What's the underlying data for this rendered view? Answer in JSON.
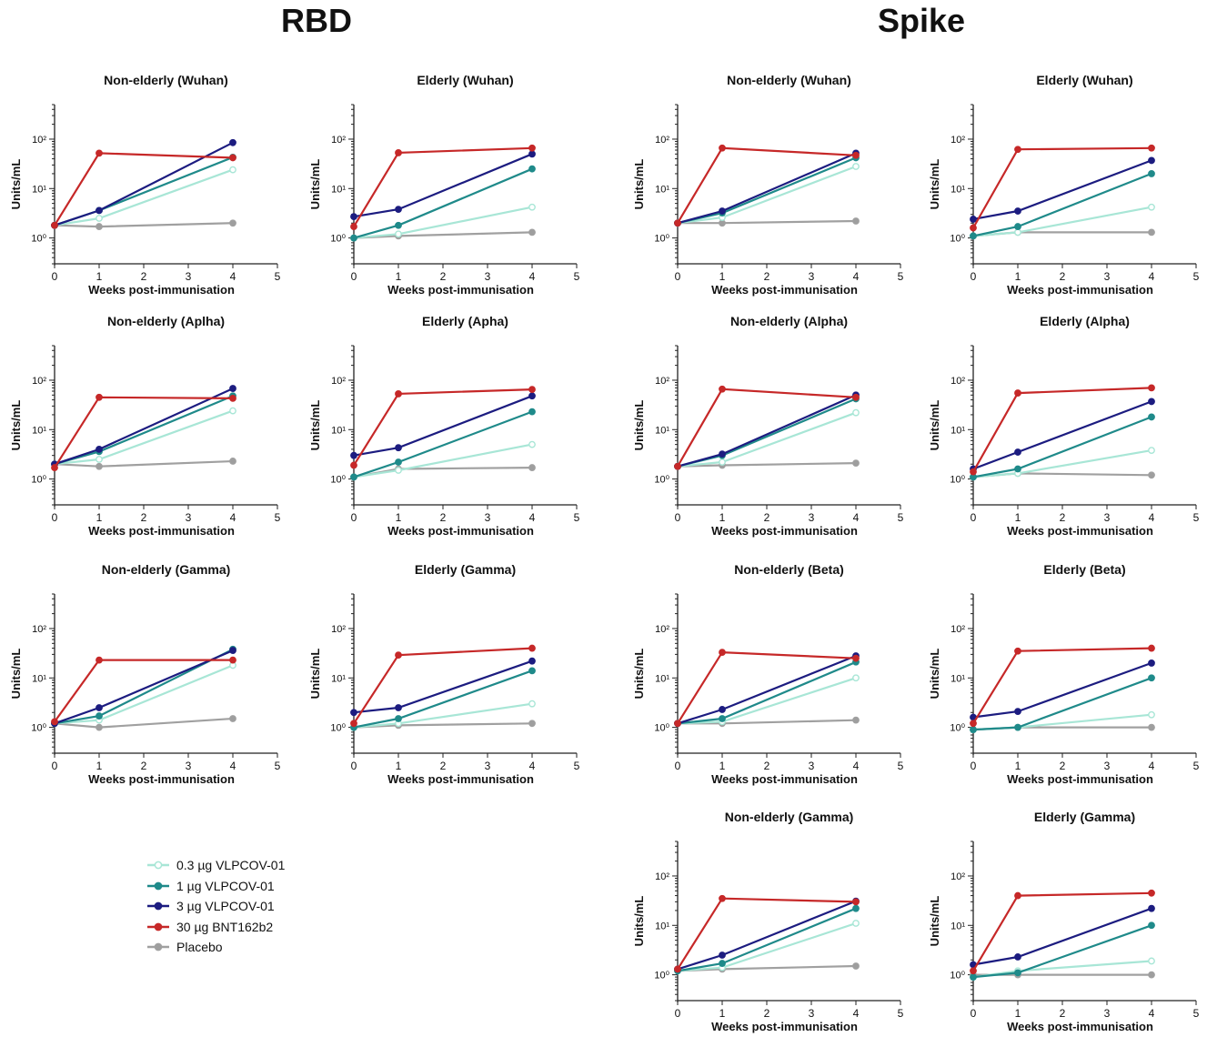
{
  "sections": {
    "left_title": "RBD",
    "right_title": "Spike"
  },
  "legend": [
    {
      "label": "0.3 µg VLPCOV-01",
      "color": "#a8e6d6",
      "fill": "#ffffff"
    },
    {
      "label": "1 µg VLPCOV-01",
      "color": "#1f8a8a",
      "fill": "#1f8a8a"
    },
    {
      "label": "3 µg VLPCOV-01",
      "color": "#1c1c80",
      "fill": "#1c1c80"
    },
    {
      "label": "30 µg BNT162b2",
      "color": "#c62828",
      "fill": "#c62828"
    },
    {
      "label": "Placebo",
      "color": "#a0a0a0",
      "fill": "#9e9e9e"
    }
  ],
  "chart_data": [
    {
      "panel": "rbd-r1-c1",
      "type": "line",
      "title": "Non-elderly (Wuhan)",
      "xlabel": "Weeks post-immunisation",
      "ylabel": "Units/mL",
      "x": [
        0,
        1,
        4
      ],
      "xlim": [
        0,
        5
      ],
      "xticks": [
        0,
        1,
        2,
        3,
        4,
        5
      ],
      "ylim": [
        0.3,
        500
      ],
      "yscale": "log",
      "yticks": [
        "10⁰",
        "10¹",
        "10²"
      ],
      "series": [
        {
          "name": "0.3 µg VLPCOV-01",
          "values": [
            1.8,
            2.5,
            24
          ]
        },
        {
          "name": "1 µg VLPCOV-01",
          "values": [
            1.8,
            3.6,
            43
          ]
        },
        {
          "name": "3 µg VLPCOV-01",
          "values": [
            1.8,
            3.6,
            85
          ]
        },
        {
          "name": "30 µg BNT162b2",
          "values": [
            1.8,
            52,
            42
          ]
        },
        {
          "name": "Placebo",
          "values": [
            1.8,
            1.7,
            2.0
          ]
        }
      ]
    },
    {
      "panel": "rbd-r1-c2",
      "type": "line",
      "title": "Elderly (Wuhan)",
      "xlabel": "Weeks post-immunisation",
      "ylabel": "Units/mL",
      "x": [
        0,
        1,
        4
      ],
      "xlim": [
        0,
        5
      ],
      "xticks": [
        0,
        1,
        2,
        3,
        4,
        5
      ],
      "ylim": [
        0.3,
        500
      ],
      "yscale": "log",
      "yticks": [
        "10⁰",
        "10¹",
        "10²"
      ],
      "series": [
        {
          "name": "0.3 µg VLPCOV-01",
          "values": [
            1.0,
            1.2,
            4.2
          ]
        },
        {
          "name": "1 µg VLPCOV-01",
          "values": [
            1.0,
            1.8,
            25
          ]
        },
        {
          "name": "3 µg VLPCOV-01",
          "values": [
            2.7,
            3.8,
            50
          ]
        },
        {
          "name": "30 µg BNT162b2",
          "values": [
            1.7,
            53,
            66
          ]
        },
        {
          "name": "Placebo",
          "values": [
            1.0,
            1.1,
            1.3
          ]
        }
      ]
    },
    {
      "panel": "spike-r1-c1",
      "type": "line",
      "title": "Non-elderly (Wuhan)",
      "xlabel": "Weeks post-immunisation",
      "ylabel": "Units/mL",
      "x": [
        0,
        1,
        4
      ],
      "xlim": [
        0,
        5
      ],
      "xticks": [
        0,
        1,
        2,
        3,
        4,
        5
      ],
      "ylim": [
        0.3,
        500
      ],
      "yscale": "log",
      "yticks": [
        "10⁰",
        "10¹",
        "10²"
      ],
      "series": [
        {
          "name": "0.3 µg VLPCOV-01",
          "values": [
            2.0,
            2.6,
            28
          ]
        },
        {
          "name": "1 µg VLPCOV-01",
          "values": [
            2.0,
            3.2,
            42
          ]
        },
        {
          "name": "3 µg VLPCOV-01",
          "values": [
            2.0,
            3.5,
            52
          ]
        },
        {
          "name": "30 µg BNT162b2",
          "values": [
            2.0,
            66,
            47
          ]
        },
        {
          "name": "Placebo",
          "values": [
            2.0,
            2.0,
            2.2
          ]
        }
      ]
    },
    {
      "panel": "spike-r1-c2",
      "type": "line",
      "title": "Elderly (Wuhan)",
      "xlabel": "Weeks post-immunisation",
      "ylabel": "Units/mL",
      "x": [
        0,
        1,
        4
      ],
      "xlim": [
        0,
        5
      ],
      "xticks": [
        0,
        1,
        2,
        3,
        4,
        5
      ],
      "ylim": [
        0.3,
        500
      ],
      "yscale": "log",
      "yticks": [
        "10⁰",
        "10¹",
        "10²"
      ],
      "series": [
        {
          "name": "0.3 µg VLPCOV-01",
          "values": [
            1.1,
            1.3,
            4.2
          ]
        },
        {
          "name": "1 µg VLPCOV-01",
          "values": [
            1.1,
            1.7,
            20
          ]
        },
        {
          "name": "3 µg VLPCOV-01",
          "values": [
            2.4,
            3.5,
            37
          ]
        },
        {
          "name": "30 µg BNT162b2",
          "values": [
            1.6,
            62,
            66
          ]
        },
        {
          "name": "Placebo",
          "values": [
            1.1,
            1.3,
            1.3
          ]
        }
      ]
    },
    {
      "panel": "rbd-r2-c1",
      "type": "line",
      "title": "Non-elderly (Aplha)",
      "xlabel": "Weeks post-immunisation",
      "ylabel": "Units/mL",
      "x": [
        0,
        1,
        4
      ],
      "xlim": [
        0,
        5
      ],
      "xticks": [
        0,
        1,
        2,
        3,
        4,
        5
      ],
      "ylim": [
        0.3,
        500
      ],
      "yscale": "log",
      "yticks": [
        "10⁰",
        "10¹",
        "10²"
      ],
      "series": [
        {
          "name": "0.3 µg VLPCOV-01",
          "values": [
            2.0,
            2.5,
            24
          ]
        },
        {
          "name": "1 µg VLPCOV-01",
          "values": [
            2.0,
            3.6,
            48
          ]
        },
        {
          "name": "3 µg VLPCOV-01",
          "values": [
            2.0,
            4.0,
            68
          ]
        },
        {
          "name": "30 µg BNT162b2",
          "values": [
            1.7,
            45,
            43
          ]
        },
        {
          "name": "Placebo",
          "values": [
            2.0,
            1.8,
            2.3
          ]
        }
      ]
    },
    {
      "panel": "rbd-r2-c2",
      "type": "line",
      "title": "Elderly (Apha)",
      "xlabel": "Weeks post-immunisation",
      "ylabel": "Units/mL",
      "x": [
        0,
        1,
        4
      ],
      "xlim": [
        0,
        5
      ],
      "xticks": [
        0,
        1,
        2,
        3,
        4,
        5
      ],
      "ylim": [
        0.3,
        500
      ],
      "yscale": "log",
      "yticks": [
        "10⁰",
        "10¹",
        "10²"
      ],
      "series": [
        {
          "name": "0.3 µg VLPCOV-01",
          "values": [
            1.1,
            1.5,
            5.0
          ]
        },
        {
          "name": "1 µg VLPCOV-01",
          "values": [
            1.1,
            2.2,
            23
          ]
        },
        {
          "name": "3 µg VLPCOV-01",
          "values": [
            3.0,
            4.3,
            48
          ]
        },
        {
          "name": "30 µg BNT162b2",
          "values": [
            1.9,
            53,
            65
          ]
        },
        {
          "name": "Placebo",
          "values": [
            1.1,
            1.6,
            1.7
          ]
        }
      ]
    },
    {
      "panel": "spike-r2-c1",
      "type": "line",
      "title": "Non-elderly (Alpha)",
      "xlabel": "Weeks post-immunisation",
      "ylabel": "Units/mL",
      "x": [
        0,
        1,
        4
      ],
      "xlim": [
        0,
        5
      ],
      "xticks": [
        0,
        1,
        2,
        3,
        4,
        5
      ],
      "ylim": [
        0.3,
        500
      ],
      "yscale": "log",
      "yticks": [
        "10⁰",
        "10¹",
        "10²"
      ],
      "series": [
        {
          "name": "0.3 µg VLPCOV-01",
          "values": [
            1.8,
            2.2,
            22
          ]
        },
        {
          "name": "1 µg VLPCOV-01",
          "values": [
            1.8,
            3.0,
            42
          ]
        },
        {
          "name": "3 µg VLPCOV-01",
          "values": [
            1.8,
            3.2,
            50
          ]
        },
        {
          "name": "30 µg BNT162b2",
          "values": [
            1.8,
            66,
            45
          ]
        },
        {
          "name": "Placebo",
          "values": [
            1.8,
            1.9,
            2.1
          ]
        }
      ]
    },
    {
      "panel": "spike-r2-c2",
      "type": "line",
      "title": "Elderly (Alpha)",
      "xlabel": "Weeks post-immunisation",
      "ylabel": "Units/mL",
      "x": [
        0,
        1,
        4
      ],
      "xlim": [
        0,
        5
      ],
      "xticks": [
        0,
        1,
        2,
        3,
        4,
        5
      ],
      "ylim": [
        0.3,
        500
      ],
      "yscale": "log",
      "yticks": [
        "10⁰",
        "10¹",
        "10²"
      ],
      "series": [
        {
          "name": "0.3 µg VLPCOV-01",
          "values": [
            1.1,
            1.3,
            3.8
          ]
        },
        {
          "name": "1 µg VLPCOV-01",
          "values": [
            1.1,
            1.6,
            18
          ]
        },
        {
          "name": "3 µg VLPCOV-01",
          "values": [
            1.6,
            3.5,
            37
          ]
        },
        {
          "name": "30 µg BNT162b2",
          "values": [
            1.4,
            55,
            70
          ]
        },
        {
          "name": "Placebo",
          "values": [
            1.1,
            1.3,
            1.2
          ]
        }
      ]
    },
    {
      "panel": "rbd-r3-c1",
      "type": "line",
      "title": "Non-elderly (Gamma)",
      "xlabel": "Weeks post-immunisation",
      "ylabel": "Units/mL",
      "x": [
        0,
        1,
        4
      ],
      "xlim": [
        0,
        5
      ],
      "xticks": [
        0,
        1,
        2,
        3,
        4,
        5
      ],
      "ylim": [
        0.3,
        500
      ],
      "yscale": "log",
      "yticks": [
        "10⁰",
        "10¹",
        "10²"
      ],
      "series": [
        {
          "name": "0.3 µg VLPCOV-01",
          "values": [
            1.2,
            1.4,
            18
          ]
        },
        {
          "name": "1 µg VLPCOV-01",
          "values": [
            1.2,
            1.7,
            38
          ]
        },
        {
          "name": "3 µg VLPCOV-01",
          "values": [
            1.2,
            2.5,
            36
          ]
        },
        {
          "name": "30 µg BNT162b2",
          "values": [
            1.3,
            23,
            23
          ]
        },
        {
          "name": "Placebo",
          "values": [
            1.2,
            1.0,
            1.5
          ]
        }
      ]
    },
    {
      "panel": "rbd-r3-c2",
      "type": "line",
      "title": "Elderly (Gamma)",
      "xlabel": "Weeks post-immunisation",
      "ylabel": "Units/mL",
      "x": [
        0,
        1,
        4
      ],
      "xlim": [
        0,
        5
      ],
      "xticks": [
        0,
        1,
        2,
        3,
        4,
        5
      ],
      "ylim": [
        0.3,
        500
      ],
      "yscale": "log",
      "yticks": [
        "10⁰",
        "10¹",
        "10²"
      ],
      "series": [
        {
          "name": "0.3 µg VLPCOV-01",
          "values": [
            1.0,
            1.2,
            3.0
          ]
        },
        {
          "name": "1 µg VLPCOV-01",
          "values": [
            1.0,
            1.5,
            14
          ]
        },
        {
          "name": "3 µg VLPCOV-01",
          "values": [
            2.0,
            2.5,
            22
          ]
        },
        {
          "name": "30 µg BNT162b2",
          "values": [
            1.2,
            29,
            40
          ]
        },
        {
          "name": "Placebo",
          "values": [
            1.0,
            1.1,
            1.2
          ]
        }
      ]
    },
    {
      "panel": "spike-r3-c1",
      "type": "line",
      "title": "Non-elderly (Beta)",
      "xlabel": "Weeks post-immunisation",
      "ylabel": "Units/mL",
      "x": [
        0,
        1,
        4
      ],
      "xlim": [
        0,
        5
      ],
      "xticks": [
        0,
        1,
        2,
        3,
        4,
        5
      ],
      "ylim": [
        0.3,
        500
      ],
      "yscale": "log",
      "yticks": [
        "10⁰",
        "10¹",
        "10²"
      ],
      "series": [
        {
          "name": "0.3 µg VLPCOV-01",
          "values": [
            1.2,
            1.3,
            10
          ]
        },
        {
          "name": "1 µg VLPCOV-01",
          "values": [
            1.2,
            1.5,
            21
          ]
        },
        {
          "name": "3 µg VLPCOV-01",
          "values": [
            1.2,
            2.3,
            28
          ]
        },
        {
          "name": "30 µg BNT162b2",
          "values": [
            1.2,
            33,
            25
          ]
        },
        {
          "name": "Placebo",
          "values": [
            1.2,
            1.2,
            1.4
          ]
        }
      ]
    },
    {
      "panel": "spike-r3-c2",
      "type": "line",
      "title": "Elderly (Beta)",
      "xlabel": "Weeks post-immunisation",
      "ylabel": "Units/mL",
      "x": [
        0,
        1,
        4
      ],
      "xlim": [
        0,
        5
      ],
      "xticks": [
        0,
        1,
        2,
        3,
        4,
        5
      ],
      "ylim": [
        0.3,
        500
      ],
      "yscale": "log",
      "yticks": [
        "10⁰",
        "10¹",
        "10²"
      ],
      "series": [
        {
          "name": "0.3 µg VLPCOV-01",
          "values": [
            0.9,
            1.0,
            1.8
          ]
        },
        {
          "name": "1 µg VLPCOV-01",
          "values": [
            0.9,
            1.0,
            10
          ]
        },
        {
          "name": "3 µg VLPCOV-01",
          "values": [
            1.6,
            2.1,
            20
          ]
        },
        {
          "name": "30 µg BNT162b2",
          "values": [
            1.2,
            35,
            40
          ]
        },
        {
          "name": "Placebo",
          "values": [
            0.9,
            1.0,
            1.0
          ]
        }
      ]
    },
    {
      "panel": "spike-r4-c1",
      "type": "line",
      "title": "Non-elderly (Gamma)",
      "xlabel": "Weeks post-immunisation",
      "ylabel": "Units/mL",
      "x": [
        0,
        1,
        4
      ],
      "xlim": [
        0,
        5
      ],
      "xticks": [
        0,
        1,
        2,
        3,
        4,
        5
      ],
      "ylim": [
        0.3,
        500
      ],
      "yscale": "log",
      "yticks": [
        "10⁰",
        "10¹",
        "10²"
      ],
      "series": [
        {
          "name": "0.3 µg VLPCOV-01",
          "values": [
            1.2,
            1.4,
            11
          ]
        },
        {
          "name": "1 µg VLPCOV-01",
          "values": [
            1.2,
            1.7,
            22
          ]
        },
        {
          "name": "3 µg VLPCOV-01",
          "values": [
            1.3,
            2.5,
            31
          ]
        },
        {
          "name": "30 µg BNT162b2",
          "values": [
            1.3,
            35,
            30
          ]
        },
        {
          "name": "Placebo",
          "values": [
            1.2,
            1.3,
            1.5
          ]
        }
      ]
    },
    {
      "panel": "spike-r4-c2",
      "type": "line",
      "title": "Elderly (Gamma)",
      "xlabel": "Weeks post-immunisation",
      "ylabel": "Units/mL",
      "x": [
        0,
        1,
        4
      ],
      "xlim": [
        0,
        5
      ],
      "xticks": [
        0,
        1,
        2,
        3,
        4,
        5
      ],
      "ylim": [
        0.3,
        500
      ],
      "yscale": "log",
      "yticks": [
        "10⁰",
        "10¹",
        "10²"
      ],
      "series": [
        {
          "name": "0.3 µg VLPCOV-01",
          "values": [
            0.9,
            1.2,
            1.9
          ]
        },
        {
          "name": "1 µg VLPCOV-01",
          "values": [
            0.9,
            1.1,
            10
          ]
        },
        {
          "name": "3 µg VLPCOV-01",
          "values": [
            1.6,
            2.3,
            22
          ]
        },
        {
          "name": "30 µg BNT162b2",
          "values": [
            1.2,
            40,
            45
          ]
        },
        {
          "name": "Placebo",
          "values": [
            1.0,
            1.0,
            1.0
          ]
        }
      ]
    }
  ]
}
